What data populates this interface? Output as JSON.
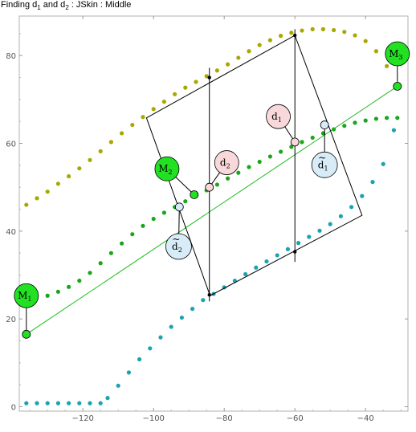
{
  "title": {
    "pre": "Finding d",
    "s1": "1",
    "mid": " and d",
    "s2": "2",
    "post": " : JSkin : Middle"
  },
  "colors": {
    "olive": "#a8a800",
    "green": "#1aa61a",
    "teal": "#1aa3b0",
    "node_green": "#22e022",
    "pink": "#f8d8d8",
    "lightblue": "#d8ecf8",
    "line_green": "#22bb22"
  },
  "chart_data": {
    "type": "scatter",
    "xlim": [
      -138,
      -28
    ],
    "ylim": [
      -1,
      89
    ],
    "xticks": [
      -120,
      -100,
      -80,
      -60,
      -40
    ],
    "yticks": [
      0,
      20,
      40,
      60,
      80
    ],
    "tick_labels_x": [
      "−120",
      "−100",
      "−80",
      "−60",
      "−40"
    ],
    "tick_labels_y": [
      "0",
      "20",
      "40",
      "60",
      "80"
    ],
    "series": [
      {
        "color": "olive",
        "points": [
          [
            -136,
            46
          ],
          [
            -133,
            47.5
          ],
          [
            -130,
            49
          ],
          [
            -127,
            50.8
          ],
          [
            -124,
            52.5
          ],
          [
            -121,
            54.3
          ],
          [
            -118,
            56.2
          ],
          [
            -115,
            58.2
          ],
          [
            -112,
            60.3
          ],
          [
            -109,
            62.3
          ],
          [
            -106,
            64.2
          ],
          [
            -103,
            66
          ],
          [
            -100,
            67.8
          ],
          [
            -97,
            69.5
          ],
          [
            -94,
            71.2
          ],
          [
            -91,
            72.7
          ],
          [
            -88,
            74
          ],
          [
            -85,
            75.3
          ],
          [
            -82,
            76.6
          ],
          [
            -79,
            78
          ],
          [
            -76,
            79.5
          ],
          [
            -73,
            81
          ],
          [
            -70,
            82.4
          ],
          [
            -67,
            83.5
          ],
          [
            -64,
            84.5
          ],
          [
            -61,
            85.2
          ],
          [
            -58,
            85.7
          ],
          [
            -55,
            86
          ],
          [
            -52,
            86
          ],
          [
            -49,
            85.8
          ],
          [
            -46,
            85.4
          ],
          [
            -43,
            84.6
          ],
          [
            -40,
            83.3
          ],
          [
            -37,
            81
          ],
          [
            -34,
            77.6
          ],
          [
            -31,
            73
          ]
        ]
      },
      {
        "color": "green",
        "points": [
          [
            -130,
            25.3
          ],
          [
            -127,
            26.2
          ],
          [
            -124,
            27.3
          ],
          [
            -121,
            28.7
          ],
          [
            -118,
            30.5
          ],
          [
            -115,
            32.7
          ],
          [
            -112,
            35
          ],
          [
            -109,
            37.2
          ],
          [
            -106,
            39.3
          ],
          [
            -103,
            41.2
          ],
          [
            -100,
            42.8
          ],
          [
            -97,
            44.2
          ],
          [
            -94,
            45.5
          ],
          [
            -91,
            46.8
          ],
          [
            -88,
            48
          ],
          [
            -85,
            49.3
          ],
          [
            -82,
            50.6
          ],
          [
            -79,
            52
          ],
          [
            -76,
            53.3
          ],
          [
            -73,
            54.6
          ],
          [
            -70,
            55.8
          ],
          [
            -67,
            57
          ],
          [
            -64,
            58.1
          ],
          [
            -61,
            59.2
          ],
          [
            -58,
            60.3
          ],
          [
            -55,
            61.3
          ],
          [
            -52,
            62.3
          ],
          [
            -49,
            63.2
          ],
          [
            -46,
            64
          ],
          [
            -43,
            64.7
          ],
          [
            -40,
            65.2
          ],
          [
            -37,
            65.6
          ],
          [
            -34,
            65.8
          ],
          [
            -31,
            65.8
          ]
        ]
      },
      {
        "color": "teal",
        "points": [
          [
            -136,
            0.8
          ],
          [
            -133,
            0.8
          ],
          [
            -130,
            0.8
          ],
          [
            -127,
            0.8
          ],
          [
            -124,
            0.8
          ],
          [
            -121,
            0.8
          ],
          [
            -118,
            0.8
          ],
          [
            -115,
            0.8
          ],
          [
            -113,
            2
          ],
          [
            -110,
            4.8
          ],
          [
            -107,
            7.8
          ],
          [
            -104,
            10.8
          ],
          [
            -101,
            13.3
          ],
          [
            -98,
            15.8
          ],
          [
            -95,
            18.2
          ],
          [
            -92,
            20.3
          ],
          [
            -89,
            22.3
          ],
          [
            -86,
            24.3
          ],
          [
            -83,
            25.7
          ],
          [
            -80,
            27.2
          ],
          [
            -77,
            28.7
          ],
          [
            -74,
            30.2
          ],
          [
            -71,
            31.7
          ],
          [
            -68,
            33.1
          ],
          [
            -65,
            34.5
          ],
          [
            -62,
            35.9
          ],
          [
            -59,
            37.3
          ],
          [
            -56,
            38.7
          ],
          [
            -53,
            40.1
          ],
          [
            -50,
            41.6
          ],
          [
            -47,
            43.4
          ],
          [
            -44,
            45.5
          ],
          [
            -41,
            48
          ],
          [
            -38,
            51.2
          ],
          [
            -35,
            55.3
          ],
          [
            -32,
            63
          ]
        ]
      }
    ],
    "control_line": [
      [
        -136,
        16.5
      ],
      [
        -31,
        73
      ]
    ],
    "main_points": [
      {
        "name": "M1_point",
        "x": -136,
        "y": 16.5,
        "fill": "node_green"
      },
      {
        "name": "M2_point",
        "x": -88.5,
        "y": 48.3,
        "fill": "node_green"
      },
      {
        "name": "M3_point",
        "x": -31,
        "y": 73,
        "fill": "node_green"
      },
      {
        "name": "d2_point",
        "x": -84.2,
        "y": 50,
        "fill": "pink"
      },
      {
        "name": "d1_point",
        "x": -60,
        "y": 60.3,
        "fill": "pink"
      },
      {
        "name": "d2t_point",
        "x": -92.7,
        "y": 45.5,
        "fill": "lightblue"
      },
      {
        "name": "d1t_point",
        "x": -51.6,
        "y": 64.2,
        "fill": "lightblue"
      }
    ],
    "polygon": [
      [
        -102,
        65.8
      ],
      [
        -60,
        84.6
      ],
      [
        -41,
        43.6
      ],
      [
        -84,
        25.3
      ]
    ],
    "vertical_lines": [
      {
        "x": -84.2,
        "y1": 24,
        "y2": 77.2
      },
      {
        "x": -60,
        "y1": 33,
        "y2": 86
      }
    ],
    "small_dots": [
      [
        -84.2,
        75
      ],
      [
        -84.2,
        25.5
      ],
      [
        -60,
        84.6
      ],
      [
        -60,
        35.3
      ]
    ],
    "labels": [
      {
        "name": "M1",
        "base": "M",
        "sub": "1",
        "tilde": false,
        "fill": "node_green",
        "r": 15,
        "x": -136,
        "y": 25.3,
        "px": -136,
        "py": 16.5
      },
      {
        "name": "M2",
        "base": "M",
        "sub": "2",
        "tilde": false,
        "fill": "node_green",
        "r": 15,
        "x": -96.2,
        "y": 54.2,
        "px": -88.5,
        "py": 48.3
      },
      {
        "name": "M3",
        "base": "M",
        "sub": "3",
        "tilde": false,
        "fill": "node_green",
        "r": 15,
        "x": -31,
        "y": 80.4,
        "px": -31,
        "py": 73
      },
      {
        "name": "d2",
        "base": "d",
        "sub": "2",
        "tilde": false,
        "fill": "pink",
        "r": 15,
        "x": -79.3,
        "y": 55.6,
        "px": -84.2,
        "py": 50
      },
      {
        "name": "d1",
        "base": "d",
        "sub": "1",
        "tilde": false,
        "fill": "pink",
        "r": 15,
        "x": -64.7,
        "y": 66.1,
        "px": -60,
        "py": 60.3
      },
      {
        "name": "d2-tilde",
        "base": "d",
        "sub": "2",
        "tilde": true,
        "fill": "lightblue",
        "r": 16,
        "x": -92.9,
        "y": 36.5,
        "px": -92.7,
        "py": 45.5
      },
      {
        "name": "d1-tilde",
        "base": "d",
        "sub": "1",
        "tilde": true,
        "fill": "lightblue",
        "r": 16,
        "x": -51.6,
        "y": 55.1,
        "px": -51.6,
        "py": 64.2
      }
    ]
  }
}
